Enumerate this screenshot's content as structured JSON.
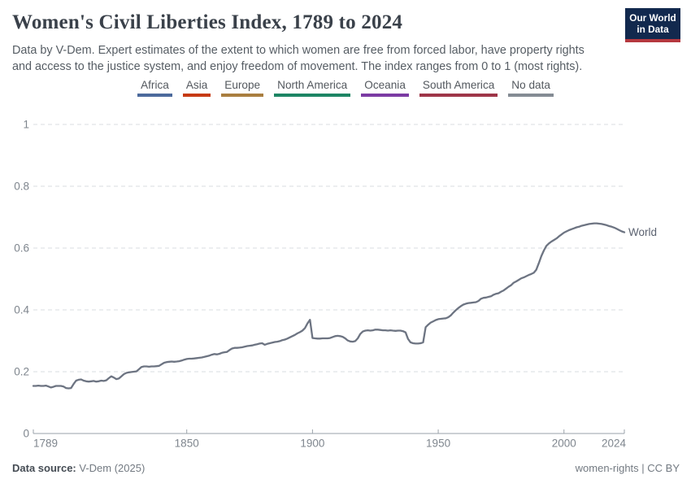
{
  "header": {
    "title": "Women's Civil Liberties Index, 1789 to 2024",
    "subtitle_lines": [
      "Data by V-Dem. Expert estimates of the extent to which women are free from forced labor, have property rights",
      "and access to the justice system, and enjoy freedom of movement. The index ranges from 0 to 1 (most rights)."
    ],
    "logo": {
      "line1": "Our World",
      "line2": "in Data",
      "bg_color": "#12294e",
      "stripe_color": "#b5383f"
    }
  },
  "footer": {
    "source_label": "Data source:",
    "source_value": " V-Dem (2025)",
    "right_text": "women-rights | CC BY"
  },
  "chart_data": {
    "type": "line",
    "title": "Women's Civil Liberties Index, 1789 to 2024",
    "xlabel": "",
    "ylabel": "",
    "xlim": [
      1789,
      2024
    ],
    "ylim": [
      0,
      1
    ],
    "grid": true,
    "y_ticks": [
      0,
      0.2,
      0.4,
      0.6,
      0.8,
      1
    ],
    "y_tick_labels": [
      "0",
      "0.2",
      "0.4",
      "0.6",
      "0.8",
      "1"
    ],
    "x_ticks": [
      1789,
      1850,
      1900,
      1950,
      2000,
      2024
    ],
    "x_tick_labels": [
      "1789",
      "1850",
      "1900",
      "1950",
      "2000",
      "2024"
    ],
    "legend_position": "top-center",
    "legend": [
      {
        "label": "Africa",
        "color": "#4C6A9C"
      },
      {
        "label": "Asia",
        "color": "#C63A14"
      },
      {
        "label": "Europe",
        "color": "#A97E3F"
      },
      {
        "label": "North America",
        "color": "#1D8564"
      },
      {
        "label": "Oceania",
        "color": "#7B3BA3"
      },
      {
        "label": "South America",
        "color": "#9E3548"
      },
      {
        "label": "No data",
        "color": "#848B94"
      }
    ],
    "series": [
      {
        "name": "World",
        "color": "#6d7482",
        "points": [
          [
            1789,
            0.154
          ],
          [
            1790,
            0.154
          ],
          [
            1791,
            0.155
          ],
          [
            1792,
            0.154
          ],
          [
            1793,
            0.154
          ],
          [
            1794,
            0.155
          ],
          [
            1795,
            0.152
          ],
          [
            1796,
            0.149
          ],
          [
            1797,
            0.151
          ],
          [
            1798,
            0.154
          ],
          [
            1799,
            0.154
          ],
          [
            1800,
            0.154
          ],
          [
            1801,
            0.152
          ],
          [
            1802,
            0.147
          ],
          [
            1803,
            0.146
          ],
          [
            1804,
            0.147
          ],
          [
            1805,
            0.16
          ],
          [
            1806,
            0.171
          ],
          [
            1807,
            0.174
          ],
          [
            1808,
            0.175
          ],
          [
            1809,
            0.171
          ],
          [
            1810,
            0.169
          ],
          [
            1811,
            0.168
          ],
          [
            1812,
            0.169
          ],
          [
            1813,
            0.17
          ],
          [
            1814,
            0.168
          ],
          [
            1815,
            0.169
          ],
          [
            1816,
            0.171
          ],
          [
            1817,
            0.17
          ],
          [
            1818,
            0.172
          ],
          [
            1819,
            0.179
          ],
          [
            1820,
            0.185
          ],
          [
            1821,
            0.181
          ],
          [
            1822,
            0.176
          ],
          [
            1823,
            0.178
          ],
          [
            1824,
            0.185
          ],
          [
            1825,
            0.192
          ],
          [
            1826,
            0.196
          ],
          [
            1827,
            0.198
          ],
          [
            1828,
            0.199
          ],
          [
            1829,
            0.2
          ],
          [
            1830,
            0.201
          ],
          [
            1831,
            0.208
          ],
          [
            1832,
            0.215
          ],
          [
            1833,
            0.217
          ],
          [
            1834,
            0.217
          ],
          [
            1835,
            0.216
          ],
          [
            1836,
            0.217
          ],
          [
            1837,
            0.217
          ],
          [
            1838,
            0.218
          ],
          [
            1839,
            0.219
          ],
          [
            1840,
            0.224
          ],
          [
            1841,
            0.229
          ],
          [
            1842,
            0.231
          ],
          [
            1843,
            0.232
          ],
          [
            1844,
            0.233
          ],
          [
            1845,
            0.232
          ],
          [
            1846,
            0.233
          ],
          [
            1847,
            0.234
          ],
          [
            1848,
            0.236
          ],
          [
            1849,
            0.239
          ],
          [
            1850,
            0.241
          ],
          [
            1851,
            0.242
          ],
          [
            1852,
            0.242
          ],
          [
            1853,
            0.243
          ],
          [
            1854,
            0.244
          ],
          [
            1855,
            0.245
          ],
          [
            1856,
            0.246
          ],
          [
            1857,
            0.248
          ],
          [
            1858,
            0.25
          ],
          [
            1859,
            0.252
          ],
          [
            1860,
            0.255
          ],
          [
            1861,
            0.257
          ],
          [
            1862,
            0.256
          ],
          [
            1863,
            0.258
          ],
          [
            1864,
            0.261
          ],
          [
            1865,
            0.263
          ],
          [
            1866,
            0.264
          ],
          [
            1867,
            0.27
          ],
          [
            1868,
            0.275
          ],
          [
            1869,
            0.277
          ],
          [
            1870,
            0.277
          ],
          [
            1871,
            0.278
          ],
          [
            1872,
            0.279
          ],
          [
            1873,
            0.281
          ],
          [
            1874,
            0.283
          ],
          [
            1875,
            0.284
          ],
          [
            1876,
            0.285
          ],
          [
            1877,
            0.287
          ],
          [
            1878,
            0.289
          ],
          [
            1879,
            0.291
          ],
          [
            1880,
            0.292
          ],
          [
            1881,
            0.287
          ],
          [
            1882,
            0.29
          ],
          [
            1883,
            0.292
          ],
          [
            1884,
            0.294
          ],
          [
            1885,
            0.296
          ],
          [
            1886,
            0.297
          ],
          [
            1887,
            0.299
          ],
          [
            1888,
            0.302
          ],
          [
            1889,
            0.304
          ],
          [
            1890,
            0.307
          ],
          [
            1891,
            0.311
          ],
          [
            1892,
            0.315
          ],
          [
            1893,
            0.319
          ],
          [
            1894,
            0.324
          ],
          [
            1895,
            0.328
          ],
          [
            1896,
            0.333
          ],
          [
            1897,
            0.341
          ],
          [
            1898,
            0.356
          ],
          [
            1899,
            0.368
          ],
          [
            1900,
            0.309
          ],
          [
            1901,
            0.308
          ],
          [
            1902,
            0.307
          ],
          [
            1903,
            0.307
          ],
          [
            1904,
            0.308
          ],
          [
            1905,
            0.308
          ],
          [
            1906,
            0.308
          ],
          [
            1907,
            0.309
          ],
          [
            1908,
            0.312
          ],
          [
            1909,
            0.315
          ],
          [
            1910,
            0.316
          ],
          [
            1911,
            0.315
          ],
          [
            1912,
            0.313
          ],
          [
            1913,
            0.308
          ],
          [
            1914,
            0.301
          ],
          [
            1915,
            0.298
          ],
          [
            1916,
            0.297
          ],
          [
            1917,
            0.299
          ],
          [
            1918,
            0.308
          ],
          [
            1919,
            0.322
          ],
          [
            1920,
            0.33
          ],
          [
            1921,
            0.333
          ],
          [
            1922,
            0.334
          ],
          [
            1923,
            0.333
          ],
          [
            1924,
            0.334
          ],
          [
            1925,
            0.336
          ],
          [
            1926,
            0.336
          ],
          [
            1927,
            0.335
          ],
          [
            1928,
            0.334
          ],
          [
            1929,
            0.334
          ],
          [
            1930,
            0.333
          ],
          [
            1931,
            0.334
          ],
          [
            1932,
            0.333
          ],
          [
            1933,
            0.332
          ],
          [
            1934,
            0.333
          ],
          [
            1935,
            0.333
          ],
          [
            1936,
            0.331
          ],
          [
            1937,
            0.327
          ],
          [
            1938,
            0.306
          ],
          [
            1939,
            0.295
          ],
          [
            1940,
            0.292
          ],
          [
            1941,
            0.291
          ],
          [
            1942,
            0.291
          ],
          [
            1943,
            0.292
          ],
          [
            1944,
            0.295
          ],
          [
            1945,
            0.344
          ],
          [
            1946,
            0.352
          ],
          [
            1947,
            0.359
          ],
          [
            1948,
            0.363
          ],
          [
            1949,
            0.367
          ],
          [
            1950,
            0.37
          ],
          [
            1951,
            0.371
          ],
          [
            1952,
            0.372
          ],
          [
            1953,
            0.373
          ],
          [
            1954,
            0.376
          ],
          [
            1955,
            0.382
          ],
          [
            1956,
            0.391
          ],
          [
            1957,
            0.399
          ],
          [
            1958,
            0.406
          ],
          [
            1959,
            0.412
          ],
          [
            1960,
            0.417
          ],
          [
            1961,
            0.42
          ],
          [
            1962,
            0.422
          ],
          [
            1963,
            0.423
          ],
          [
            1964,
            0.424
          ],
          [
            1965,
            0.425
          ],
          [
            1966,
            0.429
          ],
          [
            1967,
            0.436
          ],
          [
            1968,
            0.439
          ],
          [
            1969,
            0.44
          ],
          [
            1970,
            0.442
          ],
          [
            1971,
            0.444
          ],
          [
            1972,
            0.449
          ],
          [
            1973,
            0.452
          ],
          [
            1974,
            0.454
          ],
          [
            1975,
            0.459
          ],
          [
            1976,
            0.463
          ],
          [
            1977,
            0.469
          ],
          [
            1978,
            0.475
          ],
          [
            1979,
            0.48
          ],
          [
            1980,
            0.488
          ],
          [
            1981,
            0.492
          ],
          [
            1982,
            0.497
          ],
          [
            1983,
            0.502
          ],
          [
            1984,
            0.505
          ],
          [
            1985,
            0.509
          ],
          [
            1986,
            0.513
          ],
          [
            1987,
            0.516
          ],
          [
            1988,
            0.52
          ],
          [
            1989,
            0.53
          ],
          [
            1990,
            0.551
          ],
          [
            1991,
            0.574
          ],
          [
            1992,
            0.592
          ],
          [
            1993,
            0.607
          ],
          [
            1994,
            0.615
          ],
          [
            1995,
            0.621
          ],
          [
            1996,
            0.626
          ],
          [
            1997,
            0.631
          ],
          [
            1998,
            0.638
          ],
          [
            1999,
            0.644
          ],
          [
            2000,
            0.65
          ],
          [
            2001,
            0.654
          ],
          [
            2002,
            0.658
          ],
          [
            2003,
            0.661
          ],
          [
            2004,
            0.664
          ],
          [
            2005,
            0.667
          ],
          [
            2006,
            0.669
          ],
          [
            2007,
            0.672
          ],
          [
            2008,
            0.674
          ],
          [
            2009,
            0.676
          ],
          [
            2010,
            0.678
          ],
          [
            2011,
            0.679
          ],
          [
            2012,
            0.68
          ],
          [
            2013,
            0.68
          ],
          [
            2014,
            0.679
          ],
          [
            2015,
            0.678
          ],
          [
            2016,
            0.676
          ],
          [
            2017,
            0.674
          ],
          [
            2018,
            0.671
          ],
          [
            2019,
            0.669
          ],
          [
            2020,
            0.666
          ],
          [
            2021,
            0.662
          ],
          [
            2022,
            0.658
          ],
          [
            2023,
            0.654
          ],
          [
            2024,
            0.651
          ]
        ]
      }
    ],
    "end_label": "World",
    "colors": {
      "line": "#6d7482",
      "gridline": "#d8dde2",
      "axis": "#9aa2aa",
      "tick_text": "#7f868e",
      "end_label_text": "#5b6270"
    }
  }
}
